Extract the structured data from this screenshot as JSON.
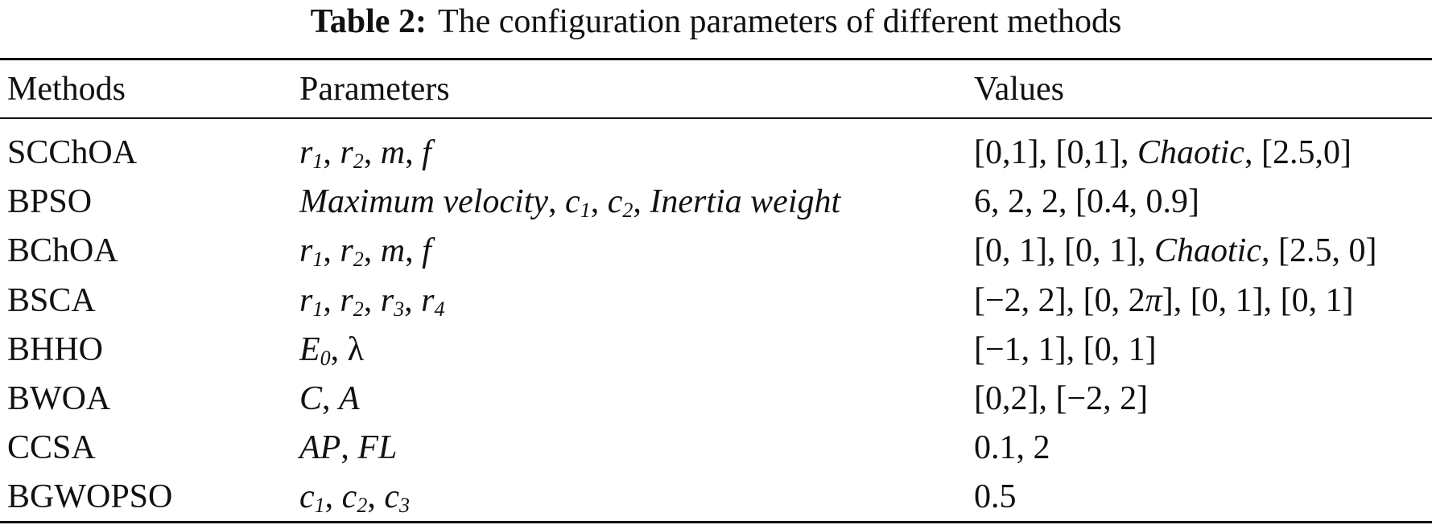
{
  "title": {
    "label": "Table 2:",
    "text": "The configuration parameters of different methods"
  },
  "table": {
    "header": [
      "Methods",
      "Parameters",
      "Values"
    ],
    "rows": [
      {
        "method": "SCChOA",
        "parameters": [
          {
            "text": "r",
            "italic": true
          },
          {
            "text": "1",
            "sub": true
          },
          {
            "text": ", "
          },
          {
            "text": "r",
            "italic": true
          },
          {
            "text": "2",
            "sub": true
          },
          {
            "text": ", "
          },
          {
            "text": "m",
            "italic": true
          },
          {
            "text": ", "
          },
          {
            "text": "f",
            "italic": true
          }
        ],
        "values": [
          {
            "text": "[0,1], [0,1], "
          },
          {
            "text": "Chaotic",
            "italic": true
          },
          {
            "text": ", [2.5,0]"
          }
        ]
      },
      {
        "method": "BPSO",
        "parameters": [
          {
            "text": "Maximum velocity",
            "italic": true
          },
          {
            "text": ", "
          },
          {
            "text": "c",
            "italic": true
          },
          {
            "text": "1",
            "sub": true
          },
          {
            "text": ", "
          },
          {
            "text": "c",
            "italic": true
          },
          {
            "text": "2",
            "sub": true
          },
          {
            "text": ", "
          },
          {
            "text": "Inertia weight",
            "italic": true
          }
        ],
        "values": [
          {
            "text": "6, 2, 2, [0.4, 0.9]"
          }
        ]
      },
      {
        "method": "BChOA",
        "parameters": [
          {
            "text": "r",
            "italic": true
          },
          {
            "text": "1",
            "sub": true
          },
          {
            "text": ", "
          },
          {
            "text": "r",
            "italic": true
          },
          {
            "text": "2",
            "sub": true
          },
          {
            "text": ", "
          },
          {
            "text": "m",
            "italic": true
          },
          {
            "text": ", "
          },
          {
            "text": "f",
            "italic": true
          }
        ],
        "values": [
          {
            "text": "[0, 1], [0, 1], "
          },
          {
            "text": "Chaotic",
            "italic": true
          },
          {
            "text": ", [2.5, 0]"
          }
        ]
      },
      {
        "method": "BSCA",
        "parameters": [
          {
            "text": "r",
            "italic": true
          },
          {
            "text": "1",
            "sub": true
          },
          {
            "text": ", "
          },
          {
            "text": "r",
            "italic": true
          },
          {
            "text": "2",
            "sub": true
          },
          {
            "text": ", "
          },
          {
            "text": "r",
            "italic": true
          },
          {
            "text": "3",
            "sub": true
          },
          {
            "text": ", "
          },
          {
            "text": "r",
            "italic": true
          },
          {
            "text": "4",
            "sub": true
          }
        ],
        "values": [
          {
            "text": "[−2, 2], [0, 2"
          },
          {
            "text": "π",
            "italic": true
          },
          {
            "text": "], [0, 1], [0, 1]"
          }
        ]
      },
      {
        "method": "BHHO",
        "parameters": [
          {
            "text": "E",
            "italic": true
          },
          {
            "text": "0",
            "sub": true
          },
          {
            "text": ", λ"
          }
        ],
        "values": [
          {
            "text": "[−1, 1], [0, 1]"
          }
        ]
      },
      {
        "method": "BWOA",
        "parameters": [
          {
            "text": "C",
            "italic": true
          },
          {
            "text": ", "
          },
          {
            "text": "A",
            "italic": true
          }
        ],
        "values": [
          {
            "text": "[0,2], [−2, 2]"
          }
        ]
      },
      {
        "method": "CCSA",
        "parameters": [
          {
            "text": "AP",
            "italic": true
          },
          {
            "text": ", "
          },
          {
            "text": "FL",
            "italic": true
          }
        ],
        "values": [
          {
            "text": "0.1, 2"
          }
        ]
      },
      {
        "method": "BGWOPSO",
        "parameters": [
          {
            "text": "c",
            "italic": true
          },
          {
            "text": "1",
            "sub": true
          },
          {
            "text": ", "
          },
          {
            "text": "c",
            "italic": true
          },
          {
            "text": "2",
            "sub": true
          },
          {
            "text": ", "
          },
          {
            "text": "c",
            "italic": true
          },
          {
            "text": "3",
            "sub": true
          }
        ],
        "values": [
          {
            "text": "0.5"
          }
        ]
      }
    ]
  }
}
